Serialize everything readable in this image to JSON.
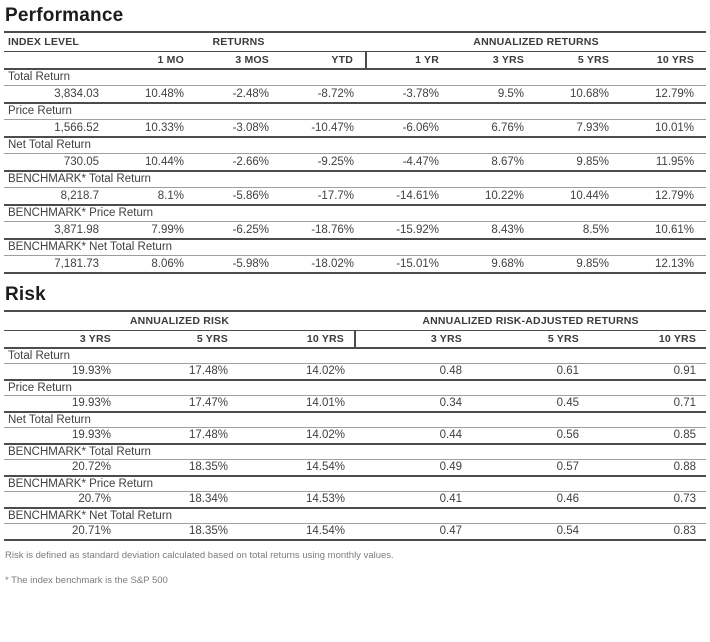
{
  "performance": {
    "title": "Performance",
    "header": {
      "index_level": "INDEX LEVEL",
      "returns_group": "RETURNS",
      "annualized_returns_group": "ANNUALIZED RETURNS"
    },
    "sub_headers": [
      "1 MO",
      "3 MOS",
      "YTD",
      "1 YR",
      "3 YRS",
      "5 YRS",
      "10 YRS"
    ],
    "rows": [
      {
        "label": "Total Return",
        "values": [
          "3,834.03",
          "10.48%",
          "-2.48%",
          "-8.72%",
          "-3.78%",
          "9.5%",
          "10.68%",
          "12.79%"
        ]
      },
      {
        "label": "Price Return",
        "values": [
          "1,566.52",
          "10.33%",
          "-3.08%",
          "-10.47%",
          "-6.06%",
          "6.76%",
          "7.93%",
          "10.01%"
        ]
      },
      {
        "label": "Net Total Return",
        "values": [
          "730.05",
          "10.44%",
          "-2.66%",
          "-9.25%",
          "-4.47%",
          "8.67%",
          "9.85%",
          "11.95%"
        ]
      },
      {
        "label": "BENCHMARK* Total Return",
        "values": [
          "8,218.7",
          "8.1%",
          "-5.86%",
          "-17.7%",
          "-14.61%",
          "10.22%",
          "10.44%",
          "12.79%"
        ]
      },
      {
        "label": "BENCHMARK* Price Return",
        "values": [
          "3,871.98",
          "7.99%",
          "-6.25%",
          "-18.76%",
          "-15.92%",
          "8.43%",
          "8.5%",
          "10.61%"
        ]
      },
      {
        "label": "BENCHMARK* Net Total Return",
        "values": [
          "7,181.73",
          "8.06%",
          "-5.98%",
          "-18.02%",
          "-15.01%",
          "9.68%",
          "9.85%",
          "12.13%"
        ]
      }
    ]
  },
  "risk": {
    "title": "Risk",
    "header": {
      "annualized_risk_group": "ANNUALIZED RISK",
      "risk_adjusted_group": "ANNUALIZED RISK-ADJUSTED RETURNS"
    },
    "sub_headers": [
      "3 YRS",
      "5 YRS",
      "10 YRS",
      "3 YRS",
      "5 YRS",
      "10 YRS"
    ],
    "rows": [
      {
        "label": "Total Return",
        "values": [
          "19.93%",
          "17.48%",
          "14.02%",
          "0.48",
          "0.61",
          "0.91"
        ]
      },
      {
        "label": "Price Return",
        "values": [
          "19.93%",
          "17.47%",
          "14.01%",
          "0.34",
          "0.45",
          "0.71"
        ]
      },
      {
        "label": "Net Total Return",
        "values": [
          "19.93%",
          "17.48%",
          "14.02%",
          "0.44",
          "0.56",
          "0.85"
        ]
      },
      {
        "label": "BENCHMARK* Total Return",
        "values": [
          "20.72%",
          "18.35%",
          "14.54%",
          "0.49",
          "0.57",
          "0.88"
        ]
      },
      {
        "label": "BENCHMARK* Price Return",
        "values": [
          "20.7%",
          "18.34%",
          "14.53%",
          "0.41",
          "0.46",
          "0.73"
        ]
      },
      {
        "label": "BENCHMARK* Net Total Return",
        "values": [
          "20.71%",
          "18.35%",
          "14.54%",
          "0.47",
          "0.54",
          "0.83"
        ]
      }
    ]
  },
  "footnotes": {
    "risk_definition": "Risk is defined as standard deviation calculated based on total returns using monthly values.",
    "benchmark": "* The index benchmark is the S&P 500"
  },
  "colors": {
    "heavy_rule": "#4c4c4e",
    "light_rule": "#9c9ea0",
    "text": "#414042",
    "footnote": "#7c7c7e"
  }
}
